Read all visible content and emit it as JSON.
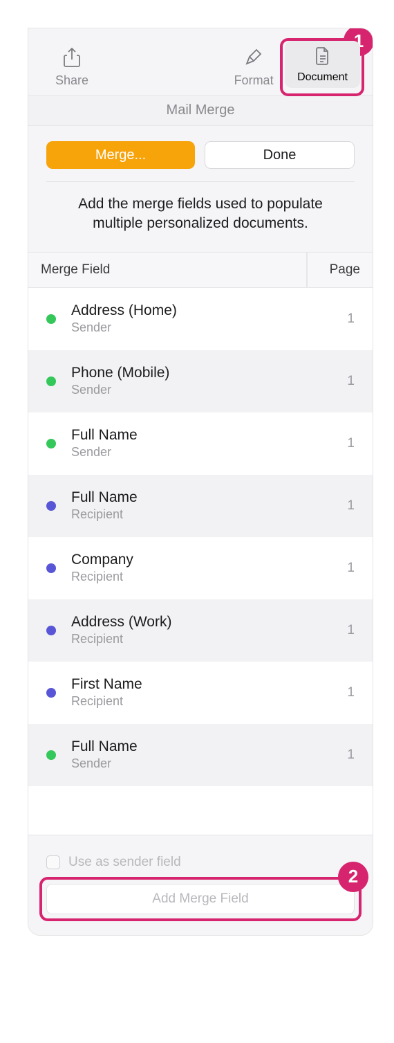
{
  "annotations": {
    "color": "#d6246e",
    "callout1": "1",
    "callout2": "2"
  },
  "toolbar": {
    "share_label": "Share",
    "format_label": "Format",
    "document_label": "Document"
  },
  "section_title": "Mail Merge",
  "buttons": {
    "merge_label": "Merge...",
    "done_label": "Done"
  },
  "description": "Add the merge fields used to populate multiple personalized documents.",
  "table": {
    "header_field": "Merge Field",
    "header_page": "Page",
    "rows": [
      {
        "title": "Address (Home)",
        "sub": "Sender",
        "page": "1",
        "dot": "green"
      },
      {
        "title": "Phone (Mobile)",
        "sub": "Sender",
        "page": "1",
        "dot": "green"
      },
      {
        "title": "Full Name",
        "sub": "Sender",
        "page": "1",
        "dot": "green"
      },
      {
        "title": "Full Name",
        "sub": "Recipient",
        "page": "1",
        "dot": "purple"
      },
      {
        "title": "Company",
        "sub": "Recipient",
        "page": "1",
        "dot": "purple"
      },
      {
        "title": "Address (Work)",
        "sub": "Recipient",
        "page": "1",
        "dot": "purple"
      },
      {
        "title": "First Name",
        "sub": "Recipient",
        "page": "1",
        "dot": "purple"
      },
      {
        "title": "Full Name",
        "sub": "Sender",
        "page": "1",
        "dot": "green"
      }
    ]
  },
  "footer": {
    "checkbox_label": "Use as sender field",
    "add_button_label": "Add Merge Field"
  },
  "colors": {
    "green": "#34c759",
    "purple": "#5856d6",
    "primary_button": "#f7a30a",
    "annotation": "#d6246e"
  }
}
